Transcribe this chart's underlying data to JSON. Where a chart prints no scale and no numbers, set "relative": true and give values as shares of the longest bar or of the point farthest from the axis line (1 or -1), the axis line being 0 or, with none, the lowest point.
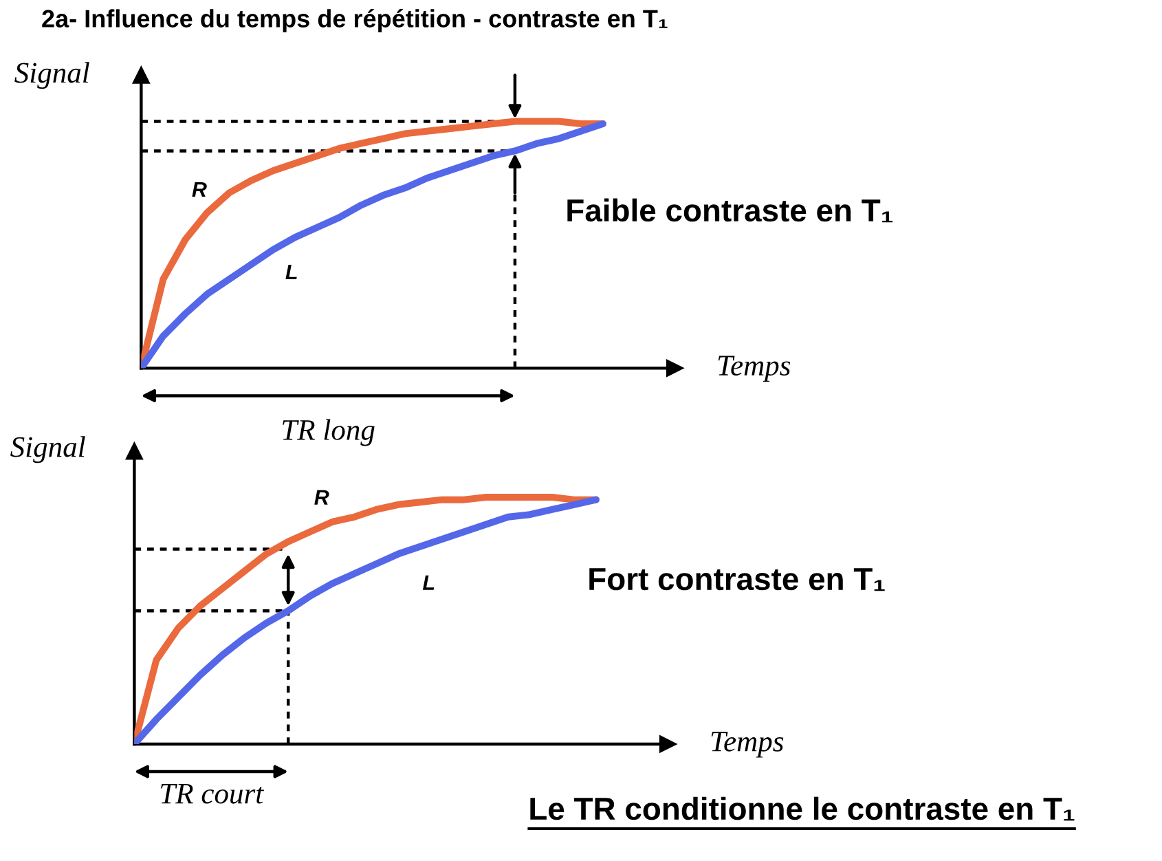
{
  "chart_data": [
    {
      "type": "line",
      "title": "2a- Influence du temps de répétition - contraste en T₁",
      "xlabel": "Temps",
      "ylabel": "Signal",
      "relative": true,
      "tick_labels": false,
      "categories": [
        null,
        null,
        null,
        null,
        null,
        null,
        null,
        null,
        null,
        null,
        null,
        null,
        null,
        null,
        null,
        null,
        null,
        null,
        null,
        null,
        null,
        null
      ],
      "series": [
        {
          "name": "R",
          "color": "#ea6a3d",
          "values": [
            0,
            0.36,
            0.52,
            0.63,
            0.71,
            0.76,
            0.8,
            0.83,
            0.86,
            0.89,
            0.91,
            0.93,
            0.95,
            0.96,
            0.97,
            0.98,
            0.99,
            1,
            1,
            1,
            0.99,
            0.99
          ]
        },
        {
          "name": "L",
          "color": "#5467e8",
          "values": [
            0,
            0.13,
            0.22,
            0.3,
            0.36,
            0.42,
            0.48,
            0.53,
            0.57,
            0.61,
            0.66,
            0.7,
            0.73,
            0.77,
            0.8,
            0.83,
            0.86,
            0.88,
            0.91,
            0.93,
            0.96,
            0.99
          ]
        }
      ],
      "ref_lines": [
        {
          "axis": "y",
          "value": 1,
          "line_style": "dashed",
          "color": "#000000"
        },
        {
          "axis": "y",
          "value": 0.88,
          "line_style": "dashed",
          "color": "#000000"
        }
      ],
      "annotations": [
        "Faible contraste en T₁",
        "TR long"
      ]
    },
    {
      "type": "line",
      "xlabel": "Temps",
      "ylabel": "Signal",
      "relative": true,
      "tick_labels": false,
      "categories": [
        null,
        null,
        null,
        null,
        null,
        null,
        null,
        null,
        null,
        null,
        null,
        null,
        null,
        null,
        null,
        null,
        null,
        null,
        null,
        null,
        null,
        null
      ],
      "series": [
        {
          "name": "R",
          "color": "#ea6a3d",
          "values": [
            0,
            0.34,
            0.47,
            0.56,
            0.63,
            0.7,
            0.77,
            0.82,
            0.86,
            0.9,
            0.92,
            0.95,
            0.97,
            0.98,
            0.99,
            0.99,
            1,
            1,
            1,
            1,
            0.99,
            0.99
          ]
        },
        {
          "name": "L",
          "color": "#5467e8",
          "values": [
            0,
            0.1,
            0.19,
            0.28,
            0.36,
            0.43,
            0.49,
            0.54,
            0.6,
            0.65,
            0.69,
            0.73,
            0.77,
            0.8,
            0.83,
            0.86,
            0.89,
            0.92,
            0.93,
            0.95,
            0.97,
            0.99
          ]
        }
      ],
      "ref_lines": [
        {
          "axis": "y",
          "value": 0.79,
          "line_style": "dashed",
          "color": "#000000"
        },
        {
          "axis": "y",
          "value": 0.54,
          "line_style": "dashed",
          "color": "#000000"
        }
      ],
      "annotations": [
        "Fort contraste en T₁",
        "TR court",
        "Le TR conditionne le contraste en T₁"
      ]
    }
  ]
}
